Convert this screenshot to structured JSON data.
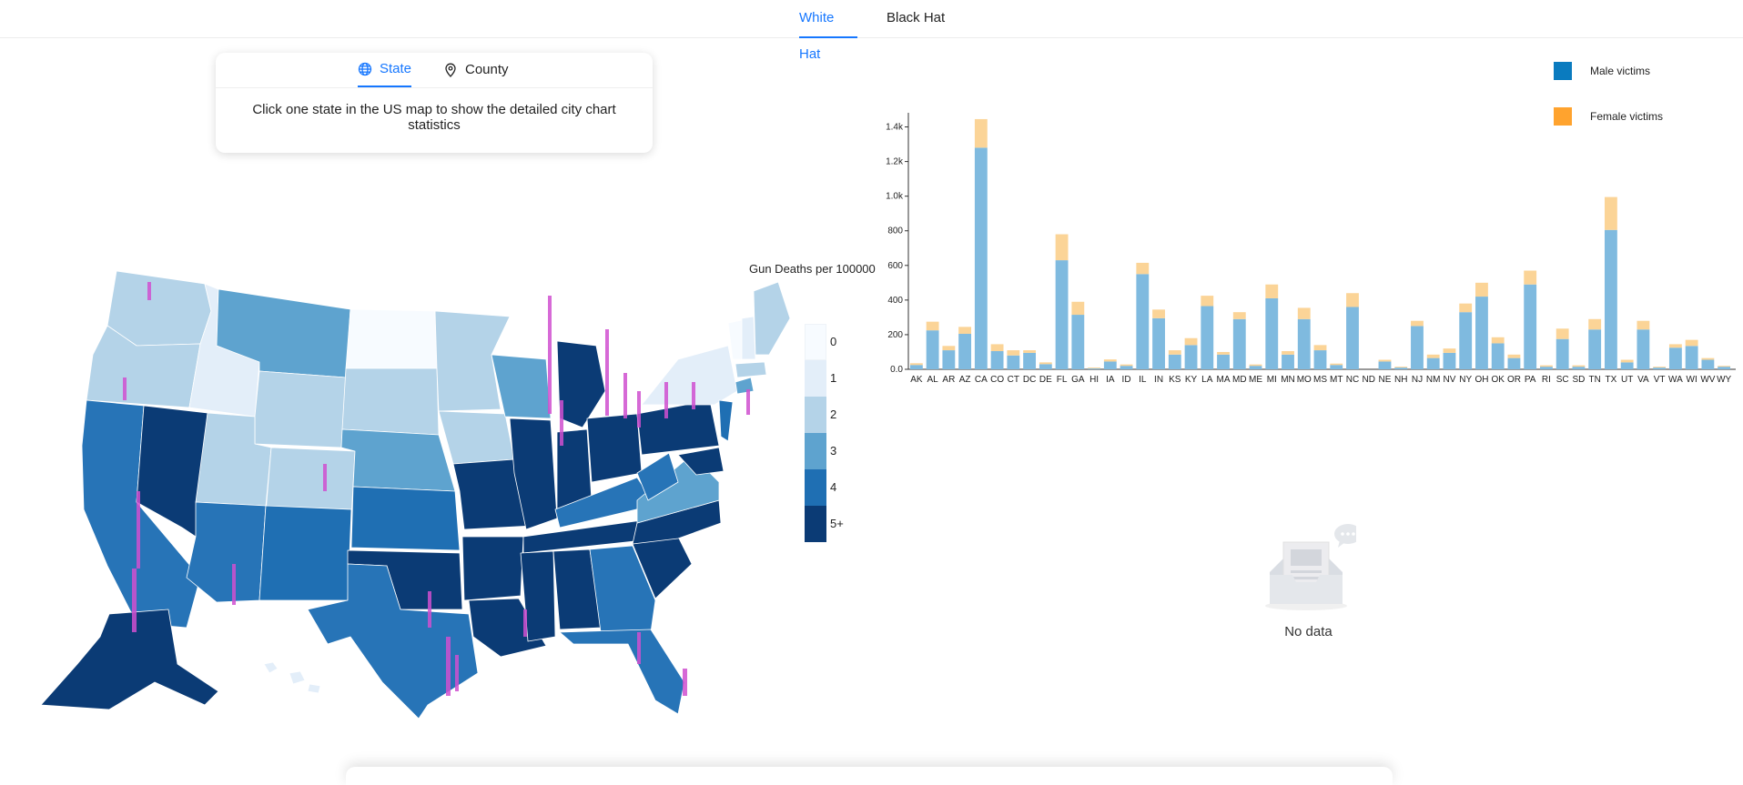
{
  "tabs": {
    "white_hat": "White Hat",
    "black_hat": "Black Hat",
    "active": "white_hat"
  },
  "mode_card": {
    "state_label": "State",
    "county_label": "County",
    "message": "Click one state in the US map to show the detailed city chart statistics"
  },
  "map": {
    "legend_title": "Gun Deaths per 100000",
    "legend": [
      {
        "label": "0",
        "color": "#f7fbff"
      },
      {
        "label": "1",
        "color": "#e3eef9"
      },
      {
        "label": "2",
        "color": "#b4d3e8"
      },
      {
        "label": "3",
        "color": "#5ea3cf"
      },
      {
        "label": "4",
        "color": "#1f6fb3"
      },
      {
        "label": "5+",
        "color": "#0b3b75"
      }
    ],
    "highlight_color": "#d050d0"
  },
  "chart_data": {
    "type": "bar",
    "stacked": true,
    "categories": [
      "AK",
      "AL",
      "AR",
      "AZ",
      "CA",
      "CO",
      "CT",
      "DC",
      "DE",
      "FL",
      "GA",
      "HI",
      "IA",
      "ID",
      "IL",
      "IN",
      "KS",
      "KY",
      "LA",
      "MA",
      "MD",
      "ME",
      "MI",
      "MN",
      "MO",
      "MS",
      "MT",
      "NC",
      "ND",
      "NE",
      "NH",
      "NJ",
      "NM",
      "NV",
      "NY",
      "OH",
      "OK",
      "OR",
      "PA",
      "RI",
      "SC",
      "SD",
      "TN",
      "TX",
      "UT",
      "VA",
      "VT",
      "WA",
      "WI",
      "WV",
      "WY"
    ],
    "series": [
      {
        "name": "Male victims",
        "color": "#7fbadf",
        "values": [
          25,
          225,
          110,
          205,
          1280,
          105,
          80,
          95,
          30,
          630,
          315,
          5,
          45,
          20,
          550,
          295,
          85,
          140,
          365,
          85,
          290,
          20,
          410,
          85,
          290,
          110,
          25,
          360,
          0,
          45,
          10,
          250,
          65,
          95,
          330,
          420,
          150,
          65,
          490,
          15,
          175,
          15,
          230,
          805,
          40,
          230,
          10,
          125,
          135,
          55,
          15
        ]
      },
      {
        "name": "Female victims",
        "color": "#fbd497",
        "values": [
          10,
          50,
          25,
          40,
          165,
          40,
          30,
          15,
          10,
          150,
          75,
          5,
          12,
          8,
          65,
          50,
          25,
          40,
          60,
          15,
          40,
          8,
          80,
          20,
          65,
          30,
          8,
          80,
          0,
          10,
          5,
          30,
          20,
          25,
          50,
          80,
          35,
          20,
          80,
          8,
          60,
          8,
          60,
          190,
          15,
          50,
          5,
          20,
          35,
          10,
          5
        ]
      }
    ],
    "yticks": [
      "0.0",
      "200",
      "400",
      "600",
      "800",
      "1.0k",
      "1.2k",
      "1.4k"
    ],
    "ylim": [
      0,
      1450
    ],
    "legend_position": "top-right"
  },
  "empty_state": {
    "text": "No data"
  }
}
